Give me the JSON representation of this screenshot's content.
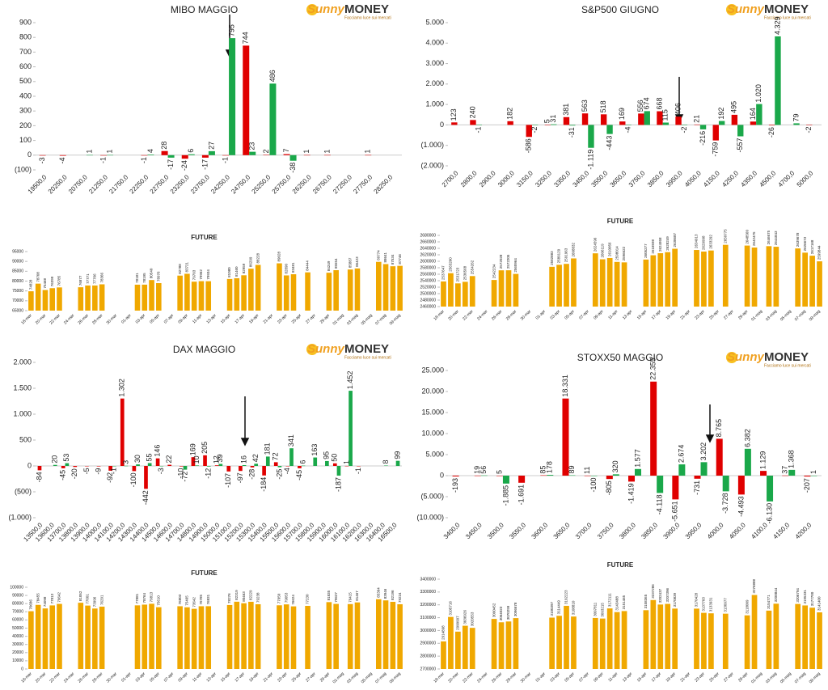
{
  "logo": {
    "name1": "Sunny",
    "name2": "MONEY",
    "tagline": "Facciamo luce sui mercati"
  },
  "chart_data": [
    {
      "type": "bar",
      "title": "MIBO MAGGIO",
      "categories": [
        "19500,0",
        "20250,0",
        "20750,0",
        "21250,0",
        "21750,0",
        "22250,0",
        "22750,0",
        "23250,0",
        "23750,0",
        "24250,0",
        "24750,0",
        "25250,0",
        "25750,0",
        "26250,0",
        "26750,0",
        "27250,0",
        "27750,0",
        "28250,0"
      ],
      "series": [
        {
          "color": "#e00000",
          "values": [
            -3,
            -4,
            null,
            -1,
            null,
            -1,
            28,
            -24,
            -17,
            -1,
            744,
            2,
            7,
            1,
            1,
            null,
            1,
            null
          ]
        },
        {
          "color": "#1aa84a",
          "values": [
            null,
            null,
            1,
            1,
            null,
            4,
            -17,
            6,
            27,
            795,
            23,
            486,
            -38,
            null,
            null,
            null,
            null,
            null
          ]
        }
      ],
      "ylim": [
        -100,
        900
      ],
      "yticks": [
        {
          "value": -100,
          "label": "(100)"
        },
        0,
        100,
        200,
        300,
        400,
        500,
        600,
        700,
        800,
        900
      ]
    },
    {
      "type": "bar",
      "title": "S&P500 GIUGNO",
      "categories": [
        "2700,0",
        "2800,0",
        "2900,0",
        "3000,0",
        "3150,0",
        "3250,0",
        "3350,0",
        "3450,0",
        "3550,0",
        "3650,0",
        "3750,0",
        "3850,0",
        "3950,0",
        "4050,0",
        "4150,0",
        "4250,0",
        "4350,0",
        "4500,0",
        "4700,0",
        "5000,0"
      ],
      "series": [
        {
          "color": "#e00000",
          "values": [
            123,
            240,
            null,
            182,
            -586,
            5,
            381,
            563,
            518,
            169,
            556,
            668,
            406,
            21,
            -759,
            495,
            164,
            -26,
            null,
            -2
          ],
          "value_labels": [
            "123",
            "240",
            null,
            "182",
            "-586",
            "5",
            "381",
            "563",
            "518",
            "169",
            "556",
            "668",
            "406",
            "21",
            "-759",
            "495",
            "164",
            "-26",
            null,
            "-2"
          ]
        },
        {
          "color": "#1aa84a",
          "values": [
            null,
            -1,
            null,
            null,
            -2,
            31,
            -31,
            -1119,
            -443,
            -4,
            674,
            115,
            -2,
            -216,
            192,
            -557,
            1020,
            4329,
            79,
            null
          ],
          "value_labels": [
            null,
            "-1",
            null,
            null,
            "-2",
            "31",
            "-31",
            "-1.119",
            "-443",
            "-4",
            "674",
            "115",
            "-2",
            "-216",
            "192",
            "-557",
            "1.020",
            "4.329",
            "79",
            null
          ]
        }
      ],
      "ylim": [
        -2000,
        5000
      ],
      "yticks": [
        {
          "value": -2000,
          "label": "(2.000)"
        },
        {
          "value": -1000,
          "label": "(1.000)"
        },
        0,
        {
          "value": 1000,
          "label": "1.000"
        },
        {
          "value": 2000,
          "label": "2.000"
        },
        {
          "value": 3000,
          "label": "3.000"
        },
        {
          "value": 4000,
          "label": "4.000"
        },
        {
          "value": 5000,
          "label": "5.000"
        }
      ]
    },
    {
      "type": "bar",
      "title": "FUTURE",
      "color": "#f0a800",
      "categories": [
        "18-mar",
        null,
        "20-mar",
        null,
        "22-mar",
        null,
        "24-mar",
        null,
        "26-mar",
        null,
        "28-mar",
        null,
        "30-mar",
        null,
        "01-apr",
        null,
        "03-apr",
        null,
        "05-apr",
        null,
        "07-apr",
        null,
        "09-apr",
        null,
        "11-apr",
        null,
        "13-apr",
        null,
        "15-apr",
        null,
        "17-apr",
        null,
        "19-apr",
        null,
        "21-apr",
        null,
        "23-apr",
        null,
        "25-apr",
        null,
        "27-apr",
        null,
        "29-apr",
        null,
        "01-mag",
        null,
        "03-mag",
        null,
        "05-mag",
        null,
        "07-mag",
        null,
        "09-mag"
      ],
      "values": [
        74828,
        78708,
        75468,
        76399,
        76785,
        null,
        null,
        76877,
        77771,
        77766,
        78366,
        null,
        null,
        null,
        null,
        78181,
        78195,
        80540,
        78976,
        null,
        null,
        82788,
        83721,
        79703,
        79962,
        79934,
        null,
        null,
        81080,
        81460,
        82959,
        86299,
        88228,
        null,
        null,
        89028,
        82890,
        83481,
        null,
        84444,
        null,
        null,
        84249,
        85554,
        null,
        85887,
        86423,
        null,
        null,
        89774,
        88641,
        87534,
        87746
      ],
      "ylim": [
        65000,
        95000
      ],
      "yticks": [
        65000,
        70000,
        75000,
        80000,
        85000,
        90000,
        95000
      ]
    },
    {
      "type": "bar",
      "title": "FUTURE",
      "color": "#f0a800",
      "categories": [
        "18-mar",
        null,
        "20-mar",
        null,
        "22-mar",
        null,
        "24-mar",
        null,
        "26-mar",
        null,
        "28-mar",
        null,
        "30-mar",
        null,
        "01-apr",
        null,
        "03-apr",
        null,
        "05-apr",
        null,
        "07-apr",
        null,
        "09-apr",
        null,
        "11-apr",
        null,
        "13-apr",
        null,
        "15-apr",
        null,
        "17-apr",
        null,
        "19-apr",
        null,
        "21-apr",
        null,
        "23-apr",
        null,
        "25-apr",
        null,
        "27-apr",
        null,
        "29-apr",
        null,
        "01-mag",
        null,
        "03-mag",
        null,
        "05-mag",
        null,
        "07-mag",
        null,
        "09-mag"
      ],
      "values": [
        2537647,
        2563200,
        2531723,
        2536568,
        2554262,
        null,
        null,
        2542234,
        2572028,
        2572205,
        2560964,
        null,
        null,
        null,
        null,
        2582883,
        2589129,
        2591963,
        2608832,
        null,
        null,
        2624596,
        2606119,
        2610056,
        2598014,
        2596622,
        null,
        null,
        2605277,
        2618598,
        2624958,
        2628249,
        2638687,
        null,
        null,
        2634913,
        2629998,
        2633292,
        null,
        2650775,
        null,
        null,
        2648560,
        2642475,
        null,
        2646675,
        2644843,
        null,
        null,
        2639678,
        2626673,
        2617168,
        2599844
      ],
      "ylim": [
        2460000,
        2680000
      ],
      "yticks": [
        2460000,
        2480000,
        2500000,
        2520000,
        2540000,
        2560000,
        2580000,
        2600000,
        2620000,
        2640000,
        2660000,
        2680000
      ]
    },
    {
      "type": "bar",
      "title": "DAX MAGGIO",
      "categories": [
        "13500,0",
        "13600,0",
        "13700,0",
        "13800,0",
        "13900,0",
        "14000,0",
        "14100,0",
        "14200,0",
        "14300,0",
        "14400,0",
        "14500,0",
        "14600,0",
        "14700,0",
        "14800,0",
        "14900,0",
        "15000,0",
        "15100,0",
        "15200,0",
        "15300,0",
        "15400,0",
        "15500,0",
        "15600,0",
        "15700,0",
        "15800,0",
        "15900,0",
        "16000,0",
        "16100,0",
        "16200,0",
        "16300,0",
        "16400,0",
        "16500,0"
      ],
      "series": [
        {
          "color": "#e00000",
          "values": [
            -84,
            null,
            -45,
            -20,
            -5,
            -9,
            -92,
            1302,
            -100,
            -442,
            146,
            22,
            -10,
            169,
            205,
            12,
            -107,
            -97,
            -28,
            -184,
            72,
            -4,
            -45,
            null,
            null,
            50,
            1,
            -1,
            null,
            null,
            null
          ],
          "value_labels": [
            "-84",
            null,
            "-45",
            "-20",
            "-5",
            "-9",
            "-92",
            "1.302",
            "-100",
            "-442",
            "146",
            "22",
            "-10",
            "169",
            "205",
            "12",
            "-107",
            "-97",
            "-28",
            "-184",
            "72",
            "-4",
            "-45",
            null,
            null,
            "50",
            "1",
            "-1",
            null,
            null,
            null
          ]
        },
        {
          "color": "#1aa84a",
          "values": [
            null,
            20,
            53,
            null,
            null,
            null,
            -1,
            3,
            30,
            55,
            -3,
            null,
            -72,
            10,
            -12,
            39,
            null,
            16,
            42,
            181,
            -25,
            341,
            6,
            163,
            95,
            -187,
            1452,
            null,
            null,
            8,
            99
          ],
          "value_labels": [
            null,
            "20",
            "53",
            null,
            null,
            null,
            "-1",
            "3",
            "30",
            "55",
            "-3",
            null,
            "-72",
            "10",
            "-12",
            "39",
            null,
            "16",
            "42",
            "181",
            "-25",
            "341",
            "6",
            "163",
            "95",
            "-187",
            "1.452",
            null,
            null,
            "8",
            "99"
          ]
        }
      ],
      "ylim": [
        -1000,
        2000
      ],
      "yticks": [
        {
          "value": -1000,
          "label": "(1.000)"
        },
        {
          "value": -500,
          "label": "(500)"
        },
        0,
        500,
        {
          "value": 1000,
          "label": "1.000"
        },
        {
          "value": 1500,
          "label": "1.500"
        },
        {
          "value": 2000,
          "label": "2.000"
        }
      ]
    },
    {
      "type": "bar",
      "title": "STOXX50 MAGGIO",
      "categories": [
        "3400,0",
        "3450,0",
        "3500,0",
        "3550,0",
        "3600,0",
        "3650,0",
        "3700,0",
        "3750,0",
        "3800,0",
        "3850,0",
        "3900,0",
        "3950,0",
        "4000,0",
        "4050,0",
        "4100,0",
        "4150,0",
        "4200,0"
      ],
      "series": [
        {
          "color": "#e00000",
          "values": [
            -193,
            19,
            5,
            -1691,
            85,
            18331,
            11,
            -805,
            -1419,
            22355,
            -5651,
            -731,
            8765,
            -4493,
            1129,
            37,
            -207
          ],
          "value_labels": [
            "-193",
            "19",
            "5",
            "-1.691",
            "85",
            "18.331",
            "11",
            "-805",
            "-1.419",
            "22.355",
            "-5.651",
            "-731",
            "8.765",
            "-4.493",
            "1.129",
            "37",
            "-207"
          ]
        },
        {
          "color": "#1aa84a",
          "values": [
            null,
            56,
            -1885,
            null,
            178,
            89,
            -100,
            320,
            1577,
            -4118,
            2674,
            3202,
            -3728,
            6382,
            -6130,
            1368,
            1
          ],
          "value_labels": [
            null,
            "56",
            "-1.885",
            null,
            "178",
            "89",
            "-100",
            "320",
            "1.577",
            "-4.118",
            "2.674",
            "3.202",
            "-3.728",
            "6.382",
            "-6.130",
            "1.368",
            "1"
          ]
        }
      ],
      "ylim": [
        -10000,
        25000
      ],
      "yticks": [
        {
          "value": -10000,
          "label": "(10.000)"
        },
        {
          "value": -5000,
          "label": "(5.000)"
        },
        0,
        {
          "value": 5000,
          "label": "5.000"
        },
        {
          "value": 10000,
          "label": "10.000"
        },
        {
          "value": 15000,
          "label": "15.000"
        },
        {
          "value": 20000,
          "label": "20.000"
        },
        {
          "value": 25000,
          "label": "25.000"
        }
      ]
    },
    {
      "type": "bar",
      "title": "FUTURE",
      "color": "#f0a800",
      "categories": [
        "18-mar",
        null,
        "20-mar",
        null,
        "22-mar",
        null,
        "24-mar",
        null,
        "26-mar",
        null,
        "28-mar",
        null,
        "30-mar",
        null,
        "01-apr",
        null,
        "03-apr",
        null,
        "05-apr",
        null,
        "07-apr",
        null,
        "09-apr",
        null,
        "11-apr",
        null,
        "13-apr",
        null,
        "15-apr",
        null,
        "17-apr",
        null,
        "19-apr",
        null,
        "21-apr",
        null,
        "23-apr",
        null,
        "25-apr",
        null,
        "27-apr",
        null,
        "29-apr",
        null,
        "01-mag",
        null,
        "03-mag",
        null,
        "05-mag",
        null,
        "07-mag",
        null,
        "09-mag"
      ],
      "values": [
        70686,
        78455,
        74098,
        77813,
        79642,
        null,
        null,
        81052,
        77601,
        73996,
        76291,
        null,
        null,
        null,
        null,
        77881,
        78764,
        79813,
        75610,
        null,
        null,
        76803,
        75465,
        73642,
        76785,
        76831,
        null,
        null,
        78276,
        82319,
        80463,
        82229,
        79238,
        null,
        null,
        77950,
        79053,
        76624,
        null,
        77230,
        null,
        null,
        81835,
        79627,
        null,
        79415,
        81467,
        null,
        null,
        85364,
        83946,
        82196,
        79224
      ],
      "ylim": [
        0,
        100000
      ],
      "yticks": [
        0,
        10000,
        20000,
        30000,
        40000,
        50000,
        60000,
        70000,
        80000,
        90000,
        100000
      ]
    },
    {
      "type": "bar",
      "title": "FUTURE",
      "color": "#f0a800",
      "categories": [
        "18-mar",
        null,
        "20-mar",
        null,
        "22-mar",
        null,
        "24-mar",
        null,
        "26-mar",
        null,
        "28-mar",
        null,
        "30-mar",
        null,
        "01-apr",
        null,
        "03-apr",
        null,
        "05-apr",
        null,
        "07-apr",
        null,
        "09-apr",
        null,
        "11-apr",
        null,
        "13-apr",
        null,
        "15-apr",
        null,
        "17-apr",
        null,
        "19-apr",
        null,
        "21-apr",
        null,
        "23-apr",
        null,
        "25-apr",
        null,
        "27-apr",
        null,
        "29-apr",
        null,
        "01-mag",
        null,
        "03-mag",
        null,
        "05-mag",
        null,
        "07-mag",
        null,
        "09-mag"
      ],
      "values": [
        2914898,
        3105716,
        2990997,
        3036926,
        3020553,
        null,
        null,
        3090452,
        3064023,
        3070299,
        3096678,
        null,
        null,
        null,
        null,
        3100397,
        3114449,
        3192223,
        3108810,
        null,
        null,
        3097811,
        3093215,
        3172111,
        3143488,
        3151465,
        null,
        null,
        3158365,
        3237286,
        3202437,
        3207396,
        3170839,
        null,
        null,
        3170428,
        3137703,
        3133931,
        null,
        3130977,
        null,
        null,
        3118009,
        3276888,
        null,
        3154771,
        3208844,
        null,
        null,
        3206794,
        3195331,
        3177700,
        3141400
      ],
      "ylim": [
        2700000,
        3400000
      ],
      "yticks": [
        2700000,
        2800000,
        2900000,
        3000000,
        3100000,
        3200000,
        3300000,
        3400000
      ]
    }
  ]
}
